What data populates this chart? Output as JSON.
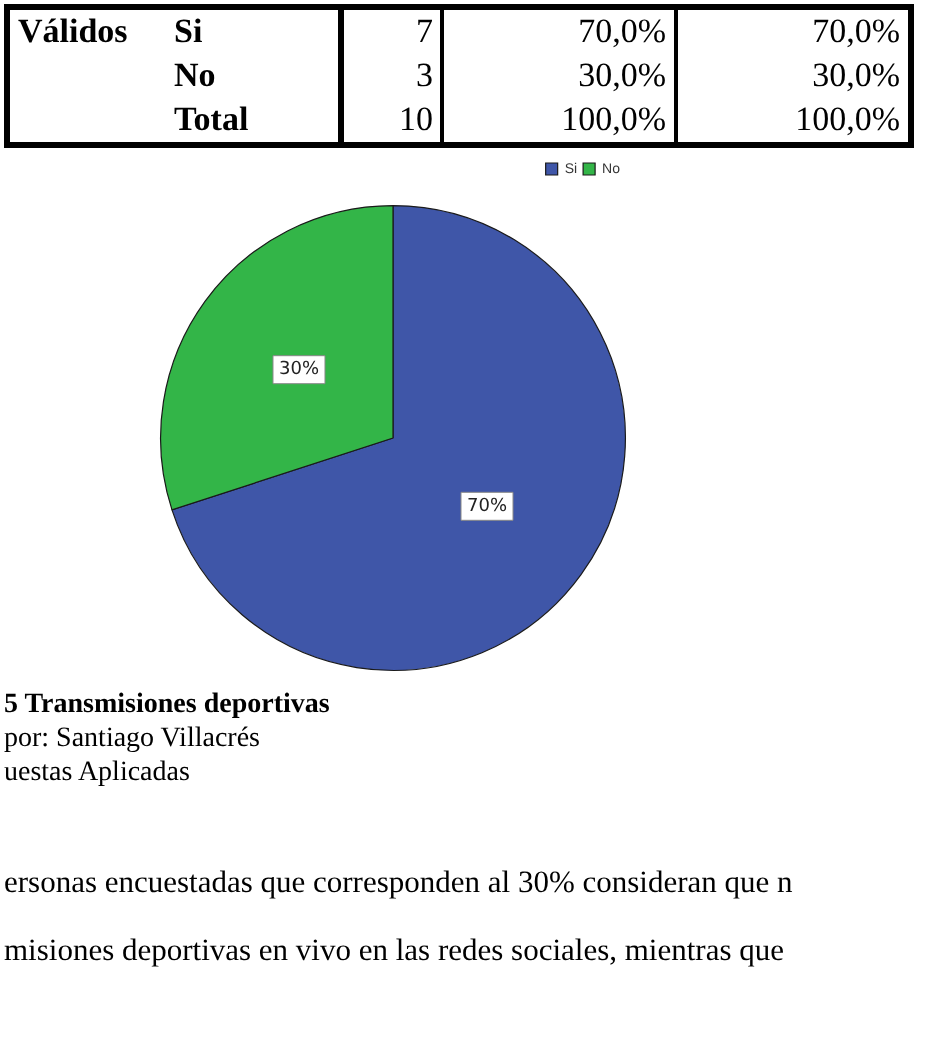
{
  "chart_data": {
    "type": "pie",
    "categories": [
      "Si",
      "No"
    ],
    "values": [
      70,
      30
    ],
    "colors": [
      "#3f56a8",
      "#33b548"
    ],
    "value_labels": [
      "70%",
      "30%"
    ],
    "legend": "top right",
    "annotations": [
      "Válidos\tSi\t7\t70,0%\t70,0%",
      "\tNo\t3\t30,0%\t30,0%",
      "\tTotal\t10\t100,0%\t100,0%",
      "5 Transmisiones deportivas",
      "por: Santiago Villacrés",
      "uestas Aplicadas",
      "ersonas encuestadas que corresponden al 30% consideran que n",
      "misiones deportivas en vivo en las redes sociales, mientras que"
    ]
  }
}
